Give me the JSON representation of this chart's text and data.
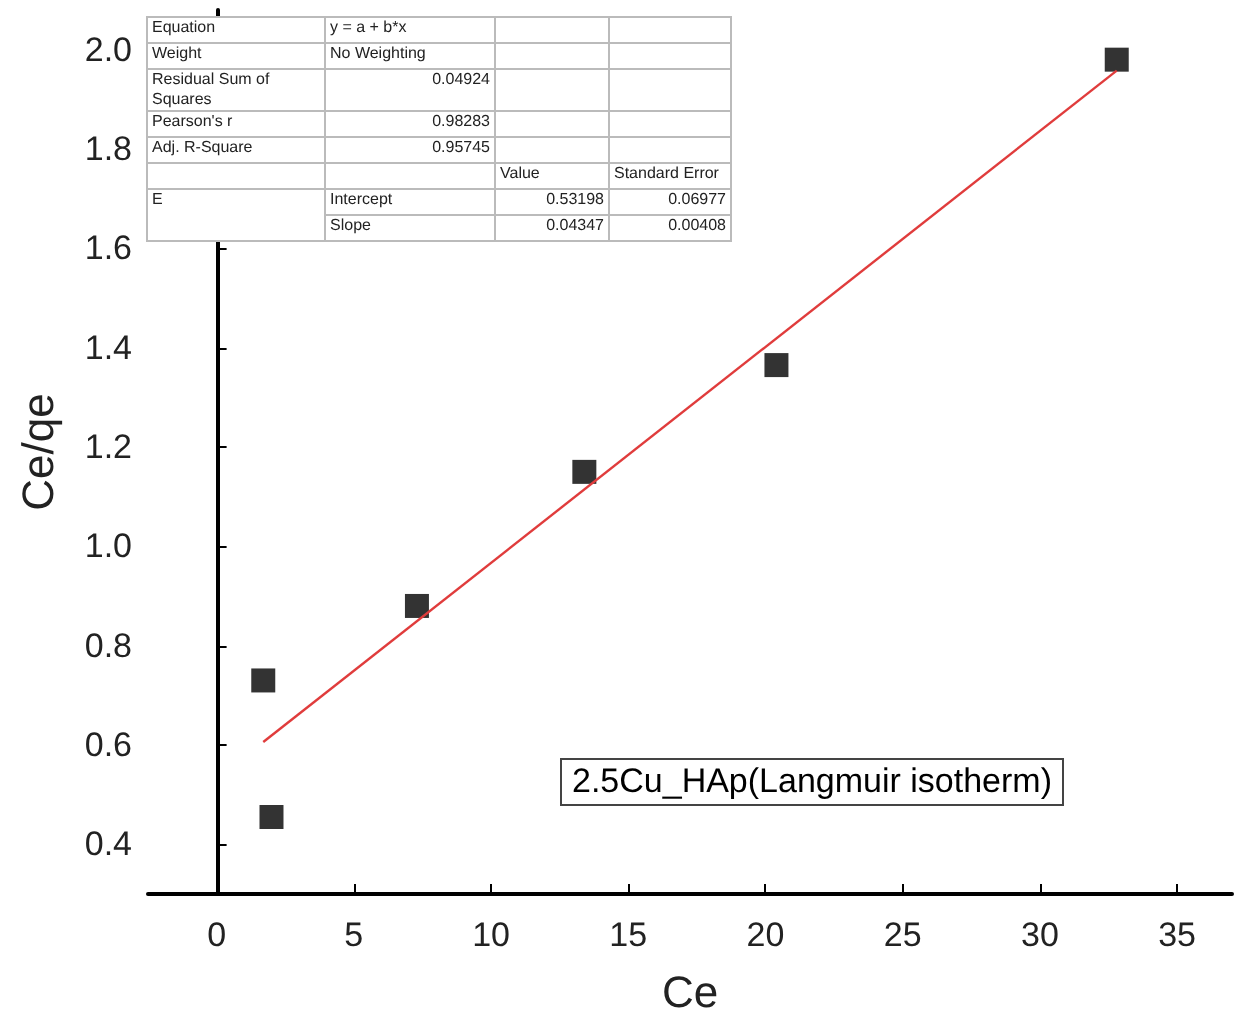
{
  "chart_data": {
    "type": "scatter",
    "xlabel": "Ce",
    "ylabel": "Ce/qe",
    "x": [
      1.7,
      2.0,
      7.3,
      13.4,
      20.4,
      32.8
    ],
    "series": [
      {
        "color": "#000000",
        "marker": "square",
        "values": [
          0.73,
          0.455,
          0.88,
          1.15,
          1.365,
          1.98
        ]
      },
      {
        "type": "line",
        "color": "#e03c3c",
        "marker": "none",
        "line_style": "solid",
        "x": [
          1.7,
          32.8
        ],
        "values": [
          0.606,
          1.958
        ]
      }
    ],
    "xlim": [
      -2.5,
      37
    ],
    "xticks": [
      0,
      5,
      10,
      15,
      20,
      25,
      30,
      35
    ],
    "ylim": [
      0.3,
      2.08
    ],
    "yticks": [
      0.4,
      0.6,
      0.8,
      {
        "value": 1,
        "label": "1.0"
      },
      1.2,
      1.4,
      1.6,
      1.8,
      {
        "value": 2,
        "label": "2.0"
      }
    ],
    "grid": false,
    "annotations": [
      "Equation",
      "y = a + b*x",
      "Weight",
      "No Weighting",
      "Residual Sum of Squares",
      "0.04924",
      "Pearson's r",
      "0.98283",
      "Adj. R-Square",
      "0.95745",
      "Value",
      "Standard Error",
      "E",
      "Intercept",
      "0.53198",
      "0.06977",
      "Slope",
      "0.04347",
      "0.00408",
      "2.5Cu_HAp(Langmuir isotherm)"
    ]
  }
}
